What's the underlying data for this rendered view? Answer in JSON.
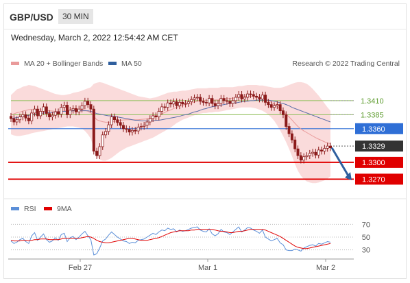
{
  "header": {
    "pair": "GBP/USD",
    "interval": "30 MIN"
  },
  "datetime": "Wednesday, March 2, 2022 12:54:42 AM CET",
  "legend": {
    "ma20_bb": "MA 20 + Bollinger Bands",
    "ma50": "MA 50",
    "credit": "Research © 2022 Trading Central"
  },
  "rsi_legend": {
    "rsi": "RSI",
    "ma9": "9MA"
  },
  "colors": {
    "candle": "#8b1a1a",
    "bollinger_fill": "#f9d5d5",
    "ma20": "#e99a9a",
    "ma50": "#5b6ea8",
    "green_level": "#8fbf5a",
    "blue_level": "#2f6fd6",
    "red_level": "#e00000",
    "current_price": "#333333",
    "arrow": "#2f5f9e",
    "rsi": "#5b8fd8",
    "rsi_ma9": "#e00000"
  },
  "chart_data": [
    {
      "type": "candlestick",
      "title": "GBP/USD 30 MIN",
      "x_ticks": [
        "Feb 27",
        "Mar 1",
        "Mar 2"
      ],
      "ylim": [
        1.324,
        1.346
      ],
      "levels": [
        {
          "value": 1.341,
          "label": "1.3410",
          "style": "green-line"
        },
        {
          "value": 1.3385,
          "label": "1.3385",
          "style": "green-line"
        },
        {
          "value": 1.336,
          "label": "1.3360",
          "style": "blue-badge"
        },
        {
          "value": 1.3329,
          "label": "1.3329",
          "style": "current-price-badge"
        },
        {
          "value": 1.33,
          "label": "1.3300",
          "style": "red-badge"
        },
        {
          "value": 1.327,
          "label": "1.3270",
          "style": "red-badge"
        }
      ],
      "close": [
        1.3378,
        1.3372,
        1.3376,
        1.3381,
        1.3385,
        1.3379,
        1.3374,
        1.3388,
        1.3395,
        1.3383,
        1.3391,
        1.3399,
        1.3387,
        1.3381,
        1.3384,
        1.339,
        1.3386,
        1.3398,
        1.3402,
        1.3385,
        1.3393,
        1.3396,
        1.339,
        1.3395,
        1.3401,
        1.3409,
        1.3403,
        1.3395,
        1.332,
        1.3312,
        1.3328,
        1.3349,
        1.3355,
        1.3367,
        1.3381,
        1.3376,
        1.3371,
        1.3366,
        1.336,
        1.3359,
        1.3354,
        1.3357,
        1.3356,
        1.3363,
        1.3364,
        1.3366,
        1.3372,
        1.3378,
        1.3383,
        1.3381,
        1.3391,
        1.3399,
        1.3398,
        1.3406,
        1.3404,
        1.3408,
        1.3401,
        1.3407,
        1.3404,
        1.3405,
        1.3408,
        1.3412,
        1.3415,
        1.3416,
        1.3409,
        1.3407,
        1.3406,
        1.3414,
        1.3405,
        1.3401,
        1.3405,
        1.3414,
        1.341,
        1.3409,
        1.3405,
        1.341,
        1.3416,
        1.3421,
        1.3413,
        1.3416,
        1.3422,
        1.3421,
        1.3418,
        1.3416,
        1.3413,
        1.342,
        1.3407,
        1.3403,
        1.3398,
        1.3401,
        1.3403,
        1.3392,
        1.3385,
        1.3364,
        1.3351,
        1.334,
        1.3324,
        1.3312,
        1.3304,
        1.331,
        1.3312,
        1.3316,
        1.3318,
        1.3313,
        1.3322,
        1.332,
        1.3325,
        1.3329,
        1.3326
      ],
      "bollinger_upper": [
        1.342,
        1.3425,
        1.343,
        1.3432,
        1.3435,
        1.3436,
        1.3438,
        1.3437,
        1.3436,
        1.3434,
        1.3432,
        1.343,
        1.3428,
        1.3426,
        1.3424,
        1.3422,
        1.3421,
        1.342,
        1.342,
        1.3421,
        1.3422,
        1.3424,
        1.3425,
        1.3426,
        1.3428,
        1.343,
        1.3432,
        1.3434,
        1.344,
        1.3442,
        1.3443,
        1.3442,
        1.344,
        1.3438,
        1.3436,
        1.3434,
        1.3432,
        1.343,
        1.3428,
        1.3426,
        1.3424,
        1.3422,
        1.342,
        1.3418,
        1.3417,
        1.3416,
        1.3415,
        1.3414,
        1.3415,
        1.3416,
        1.3418,
        1.342,
        1.3422,
        1.3424,
        1.3425,
        1.3426,
        1.3426,
        1.3427,
        1.3428,
        1.3428,
        1.3429,
        1.343,
        1.3431,
        1.3432,
        1.3432,
        1.3432,
        1.3432,
        1.3433,
        1.3433,
        1.3433,
        1.3433,
        1.3434,
        1.3434,
        1.3434,
        1.3434,
        1.3434,
        1.3435,
        1.3436,
        1.3436,
        1.3437,
        1.3438,
        1.3438,
        1.3438,
        1.3438,
        1.3437,
        1.3437,
        1.3436,
        1.3435,
        1.3434,
        1.3433,
        1.3433,
        1.3433,
        1.3434,
        1.3436,
        1.3438,
        1.344,
        1.3442,
        1.3443,
        1.3443,
        1.3442,
        1.344,
        1.3436,
        1.3431,
        1.3425,
        1.3419,
        1.3412,
        1.3405,
        1.3398,
        1.3392
      ],
      "bollinger_lower": [
        1.335,
        1.3348,
        1.3347,
        1.3347,
        1.3348,
        1.3349,
        1.335,
        1.3352,
        1.3353,
        1.3354,
        1.3355,
        1.3356,
        1.3357,
        1.3358,
        1.3359,
        1.336,
        1.3361,
        1.3362,
        1.3363,
        1.3364,
        1.3364,
        1.3364,
        1.3363,
        1.3362,
        1.336,
        1.3356,
        1.335,
        1.3342,
        1.3325,
        1.331,
        1.3305,
        1.3303,
        1.3303,
        1.3305,
        1.3308,
        1.3312,
        1.3316,
        1.332,
        1.3323,
        1.3326,
        1.3328,
        1.333,
        1.3332,
        1.3334,
        1.3336,
        1.3338,
        1.334,
        1.3342,
        1.3344,
        1.3347,
        1.335,
        1.3353,
        1.3356,
        1.3359,
        1.3362,
        1.3366,
        1.337,
        1.3373,
        1.3376,
        1.3378,
        1.338,
        1.3382,
        1.3384,
        1.3386,
        1.3387,
        1.3388,
        1.3388,
        1.3389,
        1.3389,
        1.339,
        1.339,
        1.3391,
        1.3392,
        1.3393,
        1.3394,
        1.3395,
        1.3396,
        1.3397,
        1.3398,
        1.3398,
        1.3398,
        1.3398,
        1.3397,
        1.3396,
        1.3394,
        1.3392,
        1.3389,
        1.3385,
        1.338,
        1.3374,
        1.3366,
        1.3357,
        1.3347,
        1.3336,
        1.3324,
        1.3311,
        1.3297,
        1.3285,
        1.3276,
        1.327,
        1.3266,
        1.3264,
        1.3263,
        1.3263,
        1.3264,
        1.3266,
        1.3268,
        1.3271,
        1.3275
      ],
      "ma50": [
        1.3378,
        1.3379,
        1.338,
        1.3381,
        1.3382,
        1.3383,
        1.3384,
        1.3385,
        1.3386,
        1.3386,
        1.3387,
        1.3388,
        1.3388,
        1.3389,
        1.3389,
        1.339,
        1.339,
        1.3391,
        1.3391,
        1.3391,
        1.3391,
        1.3392,
        1.3392,
        1.3392,
        1.3392,
        1.3392,
        1.3392,
        1.3391,
        1.3389,
        1.3387,
        1.3386,
        1.3385,
        1.3384,
        1.3383,
        1.3383,
        1.3382,
        1.3381,
        1.338,
        1.3379,
        1.3378,
        1.3377,
        1.3376,
        1.3375,
        1.3375,
        1.3374,
        1.3374,
        1.3374,
        1.3374,
        1.3374,
        1.3375,
        1.3375,
        1.3376,
        1.3377,
        1.3378,
        1.3379,
        1.338,
        1.3381,
        1.3382,
        1.3384,
        1.3385,
        1.3386,
        1.3388,
        1.339,
        1.3391,
        1.3393,
        1.3395,
        1.3396,
        1.3398,
        1.3399,
        1.34,
        1.3401,
        1.3402,
        1.3403,
        1.3404,
        1.3405,
        1.3406,
        1.3406,
        1.3407,
        1.3408,
        1.3409,
        1.3409,
        1.341,
        1.341,
        1.3411,
        1.3411,
        1.3411,
        1.3411,
        1.3411,
        1.341,
        1.3409,
        1.3408,
        1.3406,
        1.3405,
        1.3403,
        1.3401,
        1.3398,
        1.3396,
        1.3394,
        1.3392,
        1.339,
        1.3388,
        1.3386,
        1.3384,
        1.3382,
        1.338,
        1.3378,
        1.3376,
        1.3374,
        1.3372
      ]
    },
    {
      "type": "line",
      "title": "RSI",
      "ylim": [
        20,
        80
      ],
      "y_ticks": [
        70,
        50,
        30
      ],
      "series": [
        {
          "name": "RSI",
          "values": [
            44,
            40,
            42,
            46,
            48,
            43,
            40,
            52,
            57,
            45,
            50,
            55,
            46,
            42,
            44,
            49,
            45,
            54,
            56,
            43,
            49,
            51,
            46,
            50,
            55,
            59,
            52,
            46,
            22,
            24,
            33,
            44,
            47,
            53,
            58,
            54,
            50,
            47,
            44,
            43,
            40,
            42,
            41,
            45,
            46,
            47,
            50,
            53,
            56,
            54,
            58,
            61,
            60,
            64,
            62,
            63,
            58,
            61,
            59,
            60,
            62,
            64,
            65,
            66,
            61,
            59,
            58,
            63,
            55,
            52,
            55,
            62,
            58,
            57,
            54,
            58,
            62,
            66,
            58,
            61,
            65,
            64,
            61,
            59,
            56,
            61,
            50,
            47,
            44,
            46,
            48,
            41,
            38,
            30,
            29,
            29,
            31,
            30,
            28,
            33,
            35,
            37,
            38,
            36,
            40,
            39,
            41,
            43,
            42
          ]
        },
        {
          "name": "9MA",
          "values": [
            45,
            44,
            44,
            44,
            45,
            45,
            44,
            45,
            46,
            46,
            47,
            47,
            47,
            46,
            46,
            46,
            46,
            47,
            48,
            48,
            48,
            48,
            48,
            48,
            49,
            50,
            51,
            50,
            48,
            45,
            43,
            42,
            41,
            41,
            42,
            43,
            44,
            45,
            46,
            47,
            48,
            48,
            47,
            46,
            45,
            45,
            45,
            46,
            47,
            48,
            49,
            51,
            53,
            55,
            57,
            58,
            59,
            60,
            60,
            60,
            60,
            61,
            61,
            62,
            62,
            62,
            62,
            62,
            62,
            61,
            60,
            59,
            59,
            58,
            57,
            57,
            58,
            59,
            59,
            60,
            61,
            62,
            62,
            62,
            62,
            62,
            61,
            59,
            57,
            55,
            53,
            51,
            48,
            45,
            42,
            39,
            36,
            34,
            33,
            32,
            32,
            33,
            34,
            35,
            36,
            37,
            38,
            39,
            40
          ]
        }
      ],
      "x_ticks": [
        "Feb 27",
        "Mar 1",
        "Mar 2"
      ]
    }
  ]
}
